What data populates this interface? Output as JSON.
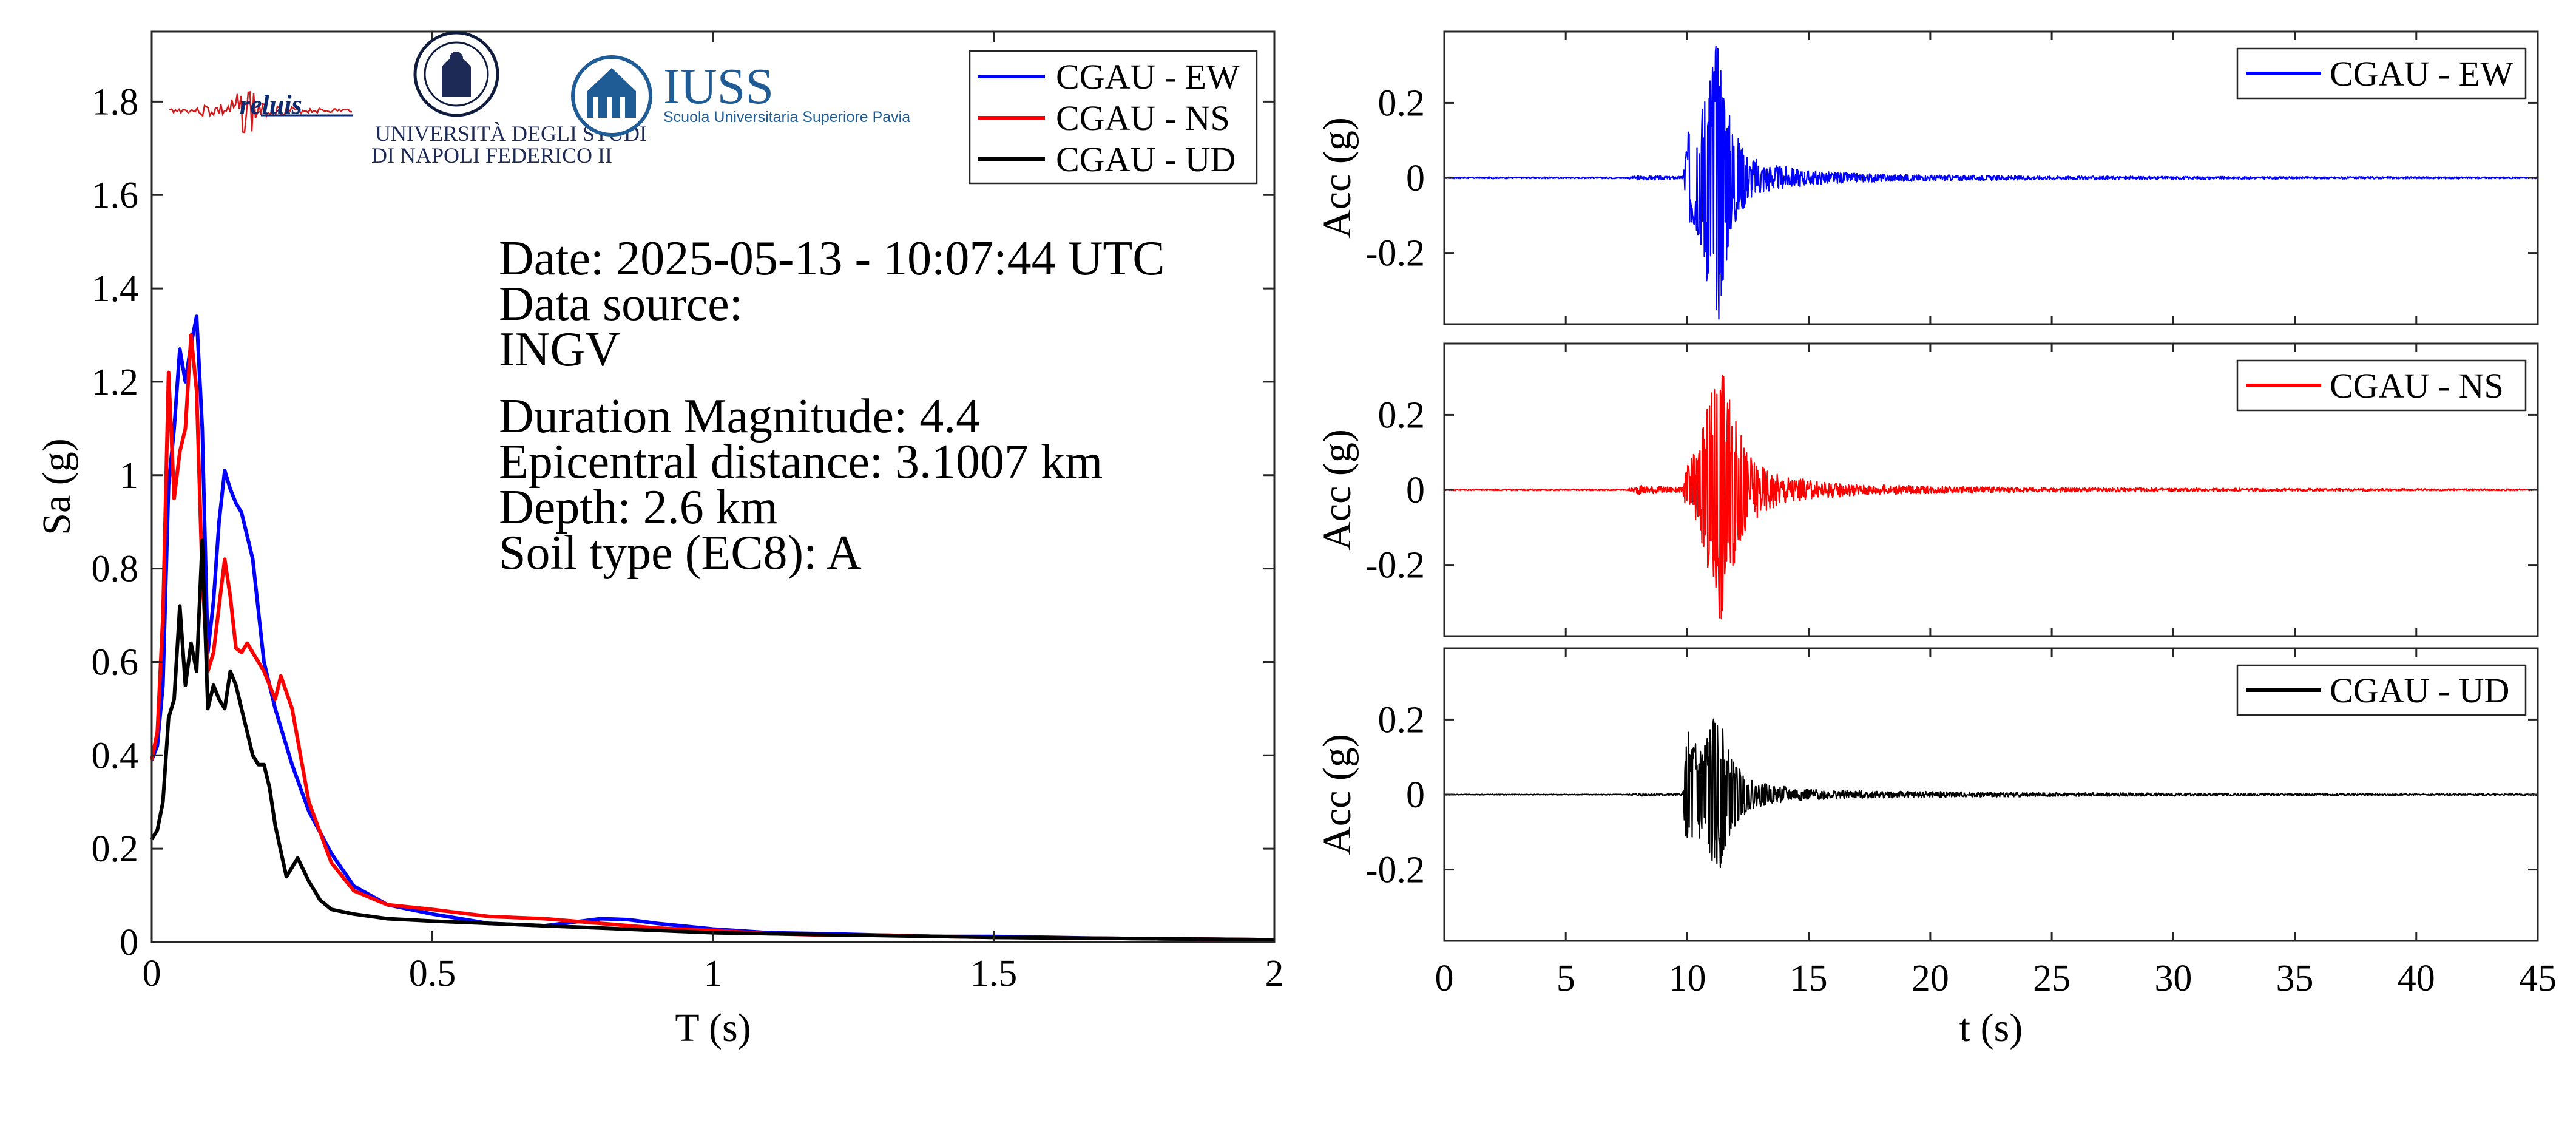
{
  "logos": {
    "reluis": "reluis",
    "unina_line1": "UNIVERSITÀ DEGLI STUDI",
    "unina_line2": "DI NAPOLI FEDERICO II",
    "iuss_title": "IUSS",
    "iuss_subtitle": "Scuola Universitaria Superiore Pavia"
  },
  "info": {
    "date": "Date: 2025-05-13 - 10:07:44 UTC",
    "data_source_label": "Data source:",
    "data_source": "INGV",
    "magnitude": "Duration Magnitude: 4.4",
    "epicentral_distance": "Epicentral distance: 3.1007 km",
    "depth": "Depth: 2.6 km",
    "soil_type": "Soil type (EC8): A"
  },
  "colors": {
    "EW": "#0000ff",
    "NS": "#ff0000",
    "UD": "#000000"
  },
  "chart_data": [
    {
      "type": "line",
      "xlabel": "T (s)",
      "ylabel": "Sa (g)",
      "xlim": [
        0,
        2
      ],
      "ylim": [
        0,
        1.95
      ],
      "xticks": [
        0,
        0.5,
        1,
        1.5,
        2
      ],
      "xticklabels": [
        "0",
        "0.5",
        "1",
        "1.5",
        "2"
      ],
      "yticks": [
        0,
        0.2,
        0.4,
        0.6,
        0.8,
        1,
        1.2,
        1.4,
        1.6,
        1.8
      ],
      "yticklabels": [
        "0",
        "0.2",
        "0.4",
        "0.6",
        "0.8",
        "1",
        "1.2",
        "1.4",
        "1.6",
        "1.8"
      ],
      "legend_position": "top-right",
      "series": [
        {
          "name": "CGAU - EW",
          "color": "#0000ff",
          "x": [
            0,
            0.01,
            0.02,
            0.03,
            0.04,
            0.05,
            0.06,
            0.07,
            0.08,
            0.09,
            0.1,
            0.11,
            0.12,
            0.13,
            0.14,
            0.15,
            0.16,
            0.17,
            0.18,
            0.2,
            0.22,
            0.25,
            0.28,
            0.32,
            0.36,
            0.42,
            0.5,
            0.6,
            0.7,
            0.8,
            0.85,
            0.9,
            1.0,
            1.1,
            1.2,
            1.3,
            1.4,
            1.5,
            1.6,
            1.7,
            1.8,
            1.9,
            2.0
          ],
          "y": [
            0.39,
            0.42,
            0.55,
            0.98,
            1.1,
            1.27,
            1.2,
            1.28,
            1.34,
            1.1,
            0.62,
            0.73,
            0.9,
            1.01,
            0.97,
            0.94,
            0.92,
            0.87,
            0.82,
            0.6,
            0.5,
            0.38,
            0.28,
            0.19,
            0.12,
            0.08,
            0.06,
            0.04,
            0.035,
            0.05,
            0.048,
            0.04,
            0.028,
            0.02,
            0.018,
            0.015,
            0.012,
            0.012,
            0.01,
            0.008,
            0.007,
            0.006,
            0.005
          ]
        },
        {
          "name": "CGAU - NS",
          "color": "#ff0000",
          "x": [
            0,
            0.01,
            0.02,
            0.03,
            0.04,
            0.05,
            0.06,
            0.07,
            0.08,
            0.09,
            0.1,
            0.11,
            0.12,
            0.13,
            0.14,
            0.15,
            0.16,
            0.17,
            0.18,
            0.2,
            0.22,
            0.23,
            0.25,
            0.28,
            0.32,
            0.36,
            0.42,
            0.5,
            0.6,
            0.7,
            0.8,
            0.9,
            1.0,
            1.1,
            1.2,
            1.3,
            1.4,
            1.5,
            1.6,
            1.7,
            1.8,
            1.9,
            2.0
          ],
          "y": [
            0.39,
            0.45,
            0.7,
            1.22,
            0.95,
            1.05,
            1.1,
            1.3,
            1.18,
            0.78,
            0.58,
            0.62,
            0.72,
            0.82,
            0.74,
            0.63,
            0.62,
            0.64,
            0.62,
            0.58,
            0.52,
            0.57,
            0.5,
            0.3,
            0.17,
            0.11,
            0.08,
            0.07,
            0.055,
            0.05,
            0.04,
            0.03,
            0.025,
            0.018,
            0.015,
            0.015,
            0.012,
            0.01,
            0.009,
            0.008,
            0.007,
            0.006,
            0.005
          ]
        },
        {
          "name": "CGAU - UD",
          "color": "#000000",
          "x": [
            0,
            0.01,
            0.02,
            0.03,
            0.04,
            0.05,
            0.06,
            0.07,
            0.08,
            0.09,
            0.1,
            0.11,
            0.12,
            0.13,
            0.14,
            0.15,
            0.16,
            0.17,
            0.18,
            0.19,
            0.2,
            0.21,
            0.22,
            0.24,
            0.26,
            0.28,
            0.3,
            0.32,
            0.36,
            0.42,
            0.5,
            0.6,
            0.7,
            0.8,
            0.9,
            1.0,
            1.1,
            1.2,
            1.3,
            1.4,
            1.5,
            1.6,
            1.7,
            1.8,
            1.9,
            2.0
          ],
          "y": [
            0.22,
            0.24,
            0.3,
            0.48,
            0.52,
            0.72,
            0.55,
            0.64,
            0.58,
            0.86,
            0.5,
            0.55,
            0.52,
            0.5,
            0.58,
            0.55,
            0.5,
            0.45,
            0.4,
            0.38,
            0.38,
            0.33,
            0.25,
            0.14,
            0.18,
            0.13,
            0.09,
            0.07,
            0.06,
            0.05,
            0.045,
            0.04,
            0.035,
            0.03,
            0.025,
            0.02,
            0.018,
            0.016,
            0.014,
            0.012,
            0.01,
            0.009,
            0.008,
            0.007,
            0.006,
            0.005
          ]
        }
      ]
    },
    {
      "type": "line",
      "component": "EW",
      "ylabel": "Acc (g)",
      "xlim": [
        0,
        45
      ],
      "ylim": [
        -0.39,
        0.39
      ],
      "yticks": [
        -0.2,
        0,
        0.2
      ],
      "yticklabels": [
        "-0.2",
        "0",
        "0.2"
      ],
      "legend_position": "top-right",
      "series": [
        {
          "name": "CGAU - EW",
          "color": "#0000ff",
          "envelope": {
            "t": [
              0,
              7.5,
              8.0,
              9.8,
              10.0,
              10.5,
              11.0,
              11.3,
              11.8,
              12.5,
              13.5,
              15.0,
              17.0,
              20.0,
              25.0,
              30.0,
              35.0,
              40.0,
              45.0
            ],
            "amp": [
              0.002,
              0.002,
              0.006,
              0.004,
              0.12,
              0.16,
              0.36,
              0.38,
              0.15,
              0.06,
              0.035,
              0.02,
              0.012,
              0.008,
              0.005,
              0.004,
              0.003,
              0.003,
              0.002
            ]
          }
        }
      ]
    },
    {
      "type": "line",
      "component": "NS",
      "ylabel": "Acc (g)",
      "xlim": [
        0,
        45
      ],
      "ylim": [
        -0.39,
        0.39
      ],
      "yticks": [
        -0.2,
        0,
        0.2
      ],
      "yticklabels": [
        "-0.2",
        "0",
        "0.2"
      ],
      "legend_position": "top-right",
      "series": [
        {
          "name": "CGAU - NS",
          "color": "#ff0000",
          "envelope": {
            "t": [
              0,
              7.5,
              8.0,
              9.8,
              10.0,
              10.5,
              11.0,
              11.4,
              11.8,
              12.5,
              13.5,
              15.0,
              17.0,
              20.0,
              25.0,
              30.0,
              35.0,
              40.0,
              45.0
            ],
            "amp": [
              0.002,
              0.002,
              0.012,
              0.006,
              0.07,
              0.12,
              0.28,
              0.36,
              0.22,
              0.1,
              0.05,
              0.025,
              0.015,
              0.01,
              0.006,
              0.005,
              0.004,
              0.003,
              0.002
            ]
          }
        }
      ]
    },
    {
      "type": "line",
      "component": "UD",
      "xlabel": "t (s)",
      "ylabel": "Acc (g)",
      "xlim": [
        0,
        45
      ],
      "ylim": [
        -0.39,
        0.39
      ],
      "xticks": [
        0,
        5,
        10,
        15,
        20,
        25,
        30,
        35,
        40,
        45
      ],
      "xticklabels": [
        "0",
        "5",
        "10",
        "15",
        "20",
        "25",
        "30",
        "35",
        "40",
        "45"
      ],
      "yticks": [
        -0.2,
        0,
        0.2
      ],
      "yticklabels": [
        "-0.2",
        "0",
        "0.2"
      ],
      "legend_position": "top-right",
      "series": [
        {
          "name": "CGAU - UD",
          "color": "#000000",
          "envelope": {
            "t": [
              0,
              7.5,
              8.0,
              9.8,
              10.0,
              10.5,
              11.0,
              11.3,
              11.8,
              12.5,
              13.5,
              15.0,
              17.0,
              20.0,
              25.0,
              30.0,
              35.0,
              40.0,
              45.0
            ],
            "amp": [
              0.001,
              0.001,
              0.004,
              0.003,
              0.17,
              0.14,
              0.2,
              0.21,
              0.1,
              0.04,
              0.025,
              0.015,
              0.01,
              0.008,
              0.005,
              0.004,
              0.003,
              0.002,
              0.002
            ]
          }
        }
      ]
    }
  ]
}
